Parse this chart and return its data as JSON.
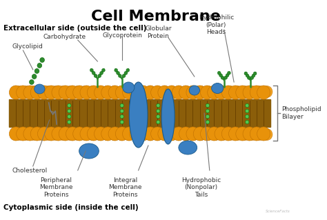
{
  "title": "Cell Membrane",
  "title_fontsize": 16,
  "title_fontweight": "bold",
  "bg_color": "#ffffff",
  "extracellular_label": "Extracellular side (outside the cell)",
  "cytoplasmic_label": "Cytoplasmic side (inside the cell)",
  "head_color": "#E8920A",
  "head_color2": "#F0A020",
  "head_edge": "#C07000",
  "tail_color": "#8B5E0A",
  "tail_line": "#6B4200",
  "protein_color": "#3A7FC1",
  "protein_edge": "#1A5A8A",
  "glyco_color": "#2E8B2E",
  "label_color": "#333333",
  "label_fontsize": 6.5,
  "side_label_fontsize": 7.5,
  "watermark": "ScienceFacts",
  "phospholipid_bilayer_label": "Phospholipid\nBilayer"
}
